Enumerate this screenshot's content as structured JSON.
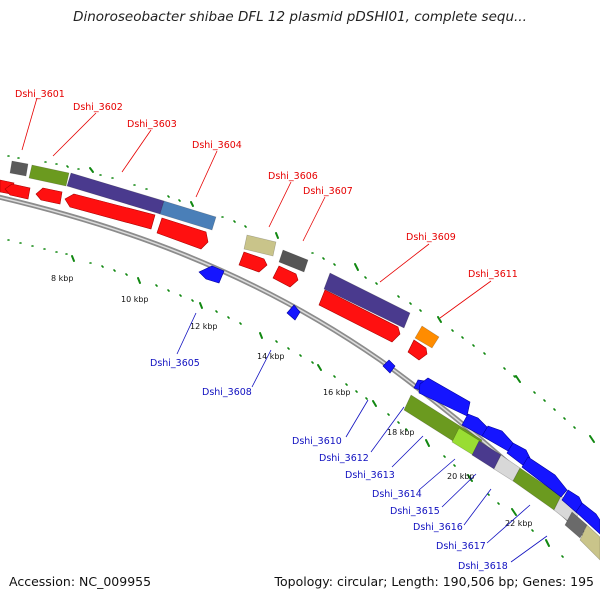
{
  "title": "Dinoroseobacter shibae DFL 12 plasmid pDSHI01, complete sequ...",
  "footer": {
    "accession": "Accession: NC_009955",
    "info": "Topology: circular; Length: 190,506 bp; Genes: 195"
  },
  "scale_labels": [
    "8 kbp",
    "10 kbp",
    "12 kbp",
    "14 kbp",
    "16 kbp",
    "18 kbp",
    "20 kbp",
    "22 kbp"
  ],
  "colors": {
    "forward_gene": "#1515ff",
    "reverse_gene": "#ff1010",
    "backbone": "#8c8c8c",
    "tick": "#118811",
    "label_red": "#e60000",
    "label_blue": "#1010c0"
  },
  "genes_top": [
    "Dshi_3601",
    "Dshi_3602",
    "Dshi_3603",
    "Dshi_3604",
    "Dshi_3606",
    "Dshi_3607",
    "Dshi_3609",
    "Dshi_3611"
  ],
  "genes_bottom": [
    "Dshi_3605",
    "Dshi_3608",
    "Dshi_3610",
    "Dshi_3612",
    "Dshi_3613",
    "Dshi_3614",
    "Dshi_3615",
    "Dshi_3616",
    "Dshi_3617",
    "Dshi_3618"
  ]
}
